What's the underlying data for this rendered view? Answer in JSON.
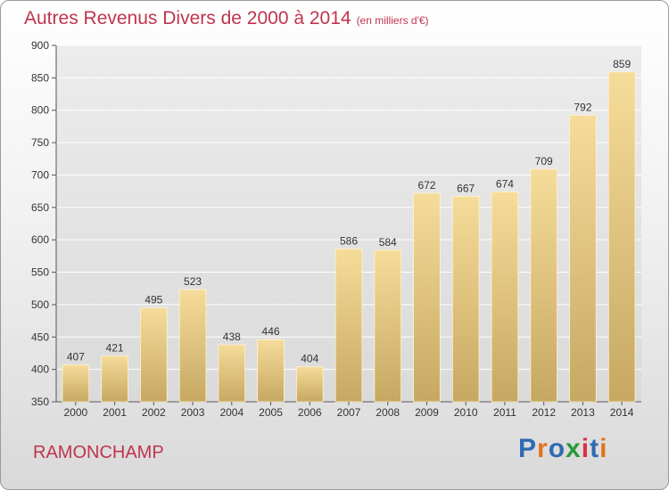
{
  "header": {
    "title": "Autres Revenus Divers de 2000 à 2014",
    "unit": "(en milliers d'€)"
  },
  "footer": {
    "commune": "RAMONCHAMP",
    "logo_text": "Proxiti",
    "logo_colors": [
      "#2f6bb3",
      "#e2731a",
      "#2f6bb3",
      "#2a9a3a",
      "#d6304a",
      "#2f6bb3",
      "#e2731a"
    ]
  },
  "chart_data": {
    "type": "bar",
    "title": "Autres Revenus Divers de 2000 à 2014",
    "subtitle": "(en milliers d'€)",
    "categories": [
      "2000",
      "2001",
      "2002",
      "2003",
      "2004",
      "2005",
      "2006",
      "2007",
      "2008",
      "2009",
      "2010",
      "2011",
      "2012",
      "2013",
      "2014"
    ],
    "values": [
      407,
      421,
      495,
      523,
      438,
      446,
      404,
      586,
      584,
      672,
      667,
      674,
      709,
      792,
      859
    ],
    "ylim": [
      350,
      900
    ],
    "yticks": [
      350,
      400,
      450,
      500,
      550,
      600,
      650,
      700,
      750,
      800,
      850,
      900
    ],
    "grid": true,
    "bar_color": "#e8c97e",
    "xlabel": "",
    "ylabel": ""
  }
}
